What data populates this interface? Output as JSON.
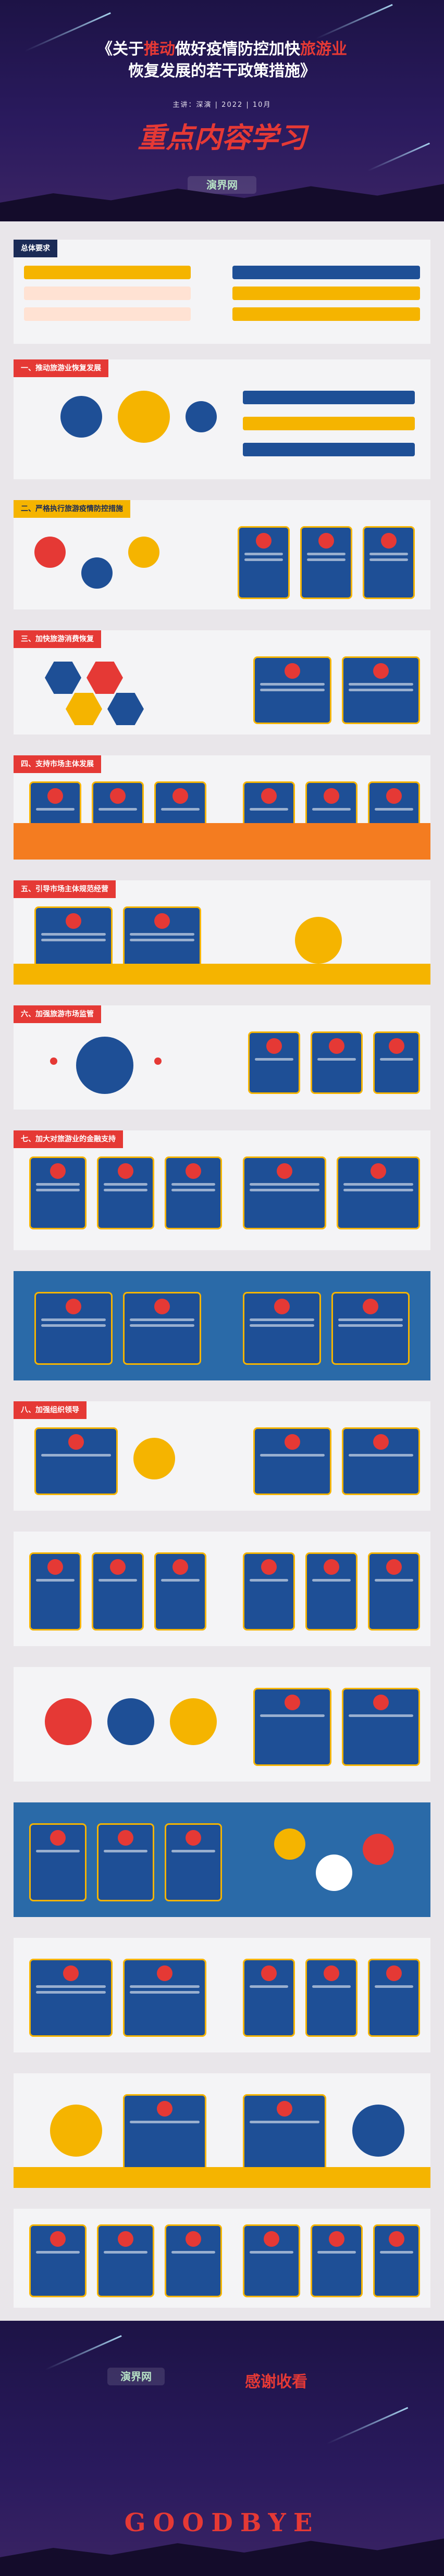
{
  "cover": {
    "title_part1": "《关于",
    "title_hl1": "推动",
    "title_part2": "做好疫情防控加快",
    "title_hl2": "旅游业",
    "title_line2": "恢复发展的若干政策措施》",
    "subtitle": "主讲：深演 | 2022 | 10月",
    "main_slogan": "重点内容学习",
    "logo": "演界网"
  },
  "slides": [
    {
      "title": "总体要求"
    },
    {
      "title": "一、推动旅游业恢复发展"
    },
    {
      "title": "二、严格执行旅游疫情防控措施"
    },
    {
      "title": "三、加快旅游消费恢复"
    },
    {
      "title": "四、支持市场主体发展"
    },
    {
      "title": "五、引导市场主体规范经营"
    },
    {
      "title": "六、加强旅游市场监管"
    },
    {
      "title": "七、加大对旅游业的金融支持"
    },
    {
      "title": "八、加强组织领导"
    }
  ],
  "end": {
    "logo": "演界网",
    "thanks": "感谢收看",
    "goodbye": "GOODBYE"
  },
  "colors": {
    "accent_red": "#e53935",
    "navy": "#1e4f96",
    "yellow": "#f5b400",
    "orange": "#f47c20"
  }
}
